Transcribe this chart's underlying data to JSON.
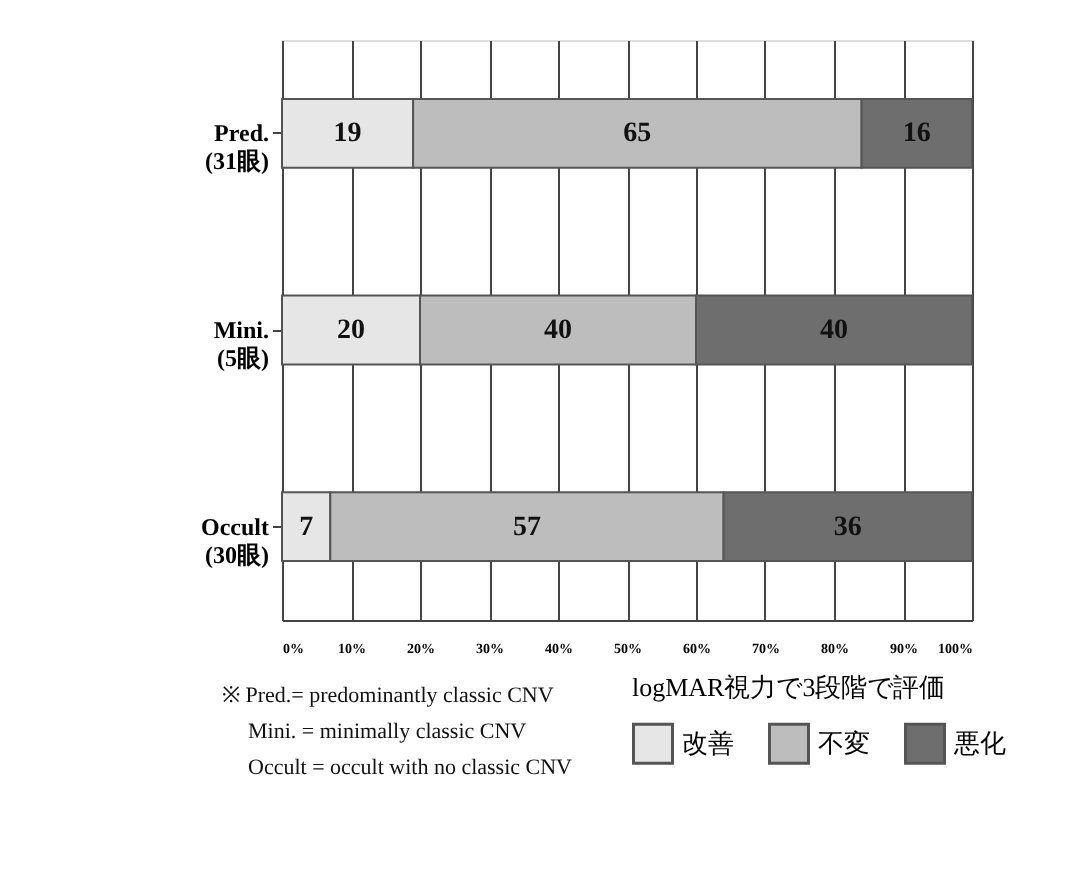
{
  "chart_data": {
    "type": "bar",
    "orientation": "horizontal",
    "stacked": true,
    "categories": [
      "Pred.\n(31眼)",
      "Mini.\n(5眼)",
      "Occult\n(30眼)"
    ],
    "series": [
      {
        "name": "改善",
        "color": "#e6e6e6",
        "values": [
          19,
          20,
          7
        ]
      },
      {
        "name": "不変",
        "color": "#bdbdbd",
        "values": [
          65,
          40,
          57
        ]
      },
      {
        "name": "悪化",
        "color": "#6e6e6e",
        "values": [
          16,
          40,
          36
        ]
      }
    ],
    "xlim": [
      0,
      100
    ],
    "xticks": [
      {
        "value": 0,
        "label": "0%"
      },
      {
        "value": 10,
        "label": "10%"
      },
      {
        "value": 20,
        "label": "20%"
      },
      {
        "value": 30,
        "label": "30%"
      },
      {
        "value": 40,
        "label": "40%"
      },
      {
        "value": 50,
        "label": "50%"
      },
      {
        "value": 60,
        "label": "60%"
      },
      {
        "value": 70,
        "label": "70%"
      },
      {
        "value": 80,
        "label": "80%"
      },
      {
        "value": 90,
        "label": "90%"
      },
      {
        "value": 100,
        "label": "100%"
      }
    ],
    "grid": "x",
    "data_labels": true,
    "legend": "bottom right",
    "legend_title": "logMAR視力で3段階で評価",
    "annotations": [
      "※ Pred.= predominantly classic CNV",
      "Mini. = minimally classic CNV",
      "Occult = occult with no classic CNV"
    ]
  }
}
